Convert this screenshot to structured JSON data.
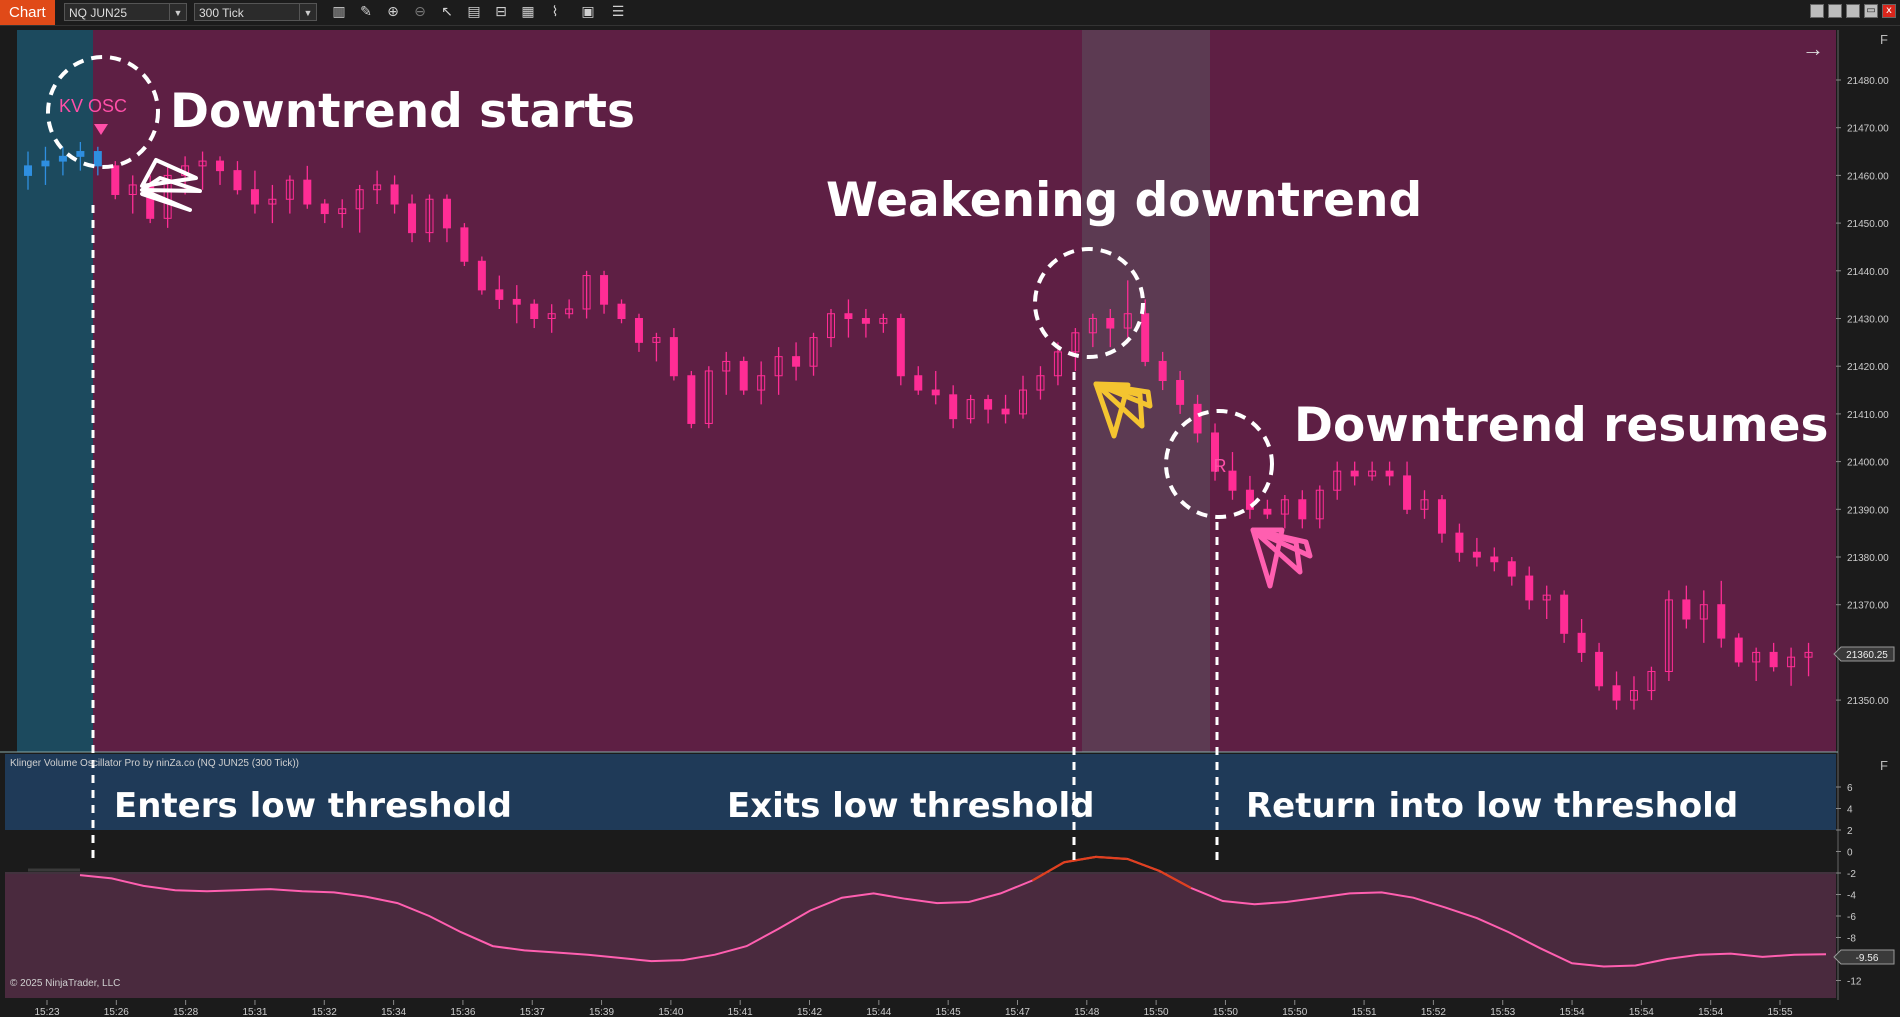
{
  "toolbar": {
    "chart_tab": "Chart",
    "instrument": "NQ JUN25",
    "interval": "300 Tick",
    "icons": [
      "bar-type-icon",
      "draw-pencil-icon",
      "zoom-in-icon",
      "zoom-out-icon",
      "pointer-icon",
      "data-box-icon",
      "properties-icon",
      "indicators-icon",
      "strategies-icon",
      "templates-icon",
      "list-icon"
    ],
    "window_buttons": [
      "minimize",
      "maximize",
      "restore",
      "close"
    ],
    "close_glyph": "x"
  },
  "price_panel": {
    "price_labels": [
      "21480.00",
      "21470.00",
      "21460.00",
      "21450.00",
      "21440.00",
      "21430.00",
      "21420.00",
      "21410.00",
      "21400.00",
      "21390.00",
      "21380.00",
      "21370.00",
      "21360.00",
      "21350.00"
    ],
    "current_price": "21360.25",
    "panel_button": "F",
    "scroll_arrow": "→",
    "marker_kv": "KV OSC",
    "marker_r": "R"
  },
  "indicator_panel": {
    "title": "Klinger Volume Oscillator Pro by ninZa.co (NQ JUN25 (300 Tick))",
    "scale_labels": [
      "6",
      "4",
      "2",
      "0",
      "-2",
      "-4",
      "-6",
      "-8",
      "-10",
      "-12"
    ],
    "current_value": "-9.56",
    "panel_button": "F",
    "copyright": "© 2025 NinjaTrader, LLC"
  },
  "time_labels": [
    "15:23",
    "15:26",
    "15:28",
    "15:31",
    "15:32",
    "15:34",
    "15:36",
    "15:37",
    "15:39",
    "15:40",
    "15:41",
    "15:42",
    "15:44",
    "15:45",
    "15:47",
    "15:48",
    "15:50",
    "15:50",
    "15:50",
    "15:51",
    "15:52",
    "15:53",
    "15:54",
    "15:54",
    "15:54",
    "15:55"
  ],
  "annotations": {
    "downtrend_starts": "Downtrend starts",
    "weakening": "Weakening downtrend",
    "resumes": "Downtrend resumes",
    "enters": "Enters low threshold",
    "exits": "Exits low threshold",
    "returns": "Return into low threshold"
  },
  "colors": {
    "background": "#1b1b1b",
    "bear_zone": "#5e1f44",
    "bull_zone": "#1c4a5e",
    "neutral_zone": "#5c3a52",
    "candle_pink": "#ff2d95",
    "candle_blue": "#2f8fe0",
    "threshold_band": "#1f3a58",
    "oscillator_line": "#ff5fb0",
    "oscillator_high": "#e0401e",
    "warning_icon": "#f4c430"
  },
  "chart_data": [
    {
      "type": "candlestick",
      "title": "NQ JUN25 300 Tick",
      "ylim": [
        21345,
        21490
      ],
      "candles": [
        [
          21460,
          21465,
          21457,
          21462
        ],
        [
          21462,
          21466,
          21458,
          21463
        ],
        [
          21463,
          21466,
          21460,
          21464
        ],
        [
          21464,
          21467,
          21461,
          21465
        ],
        [
          21465,
          21466,
          21460,
          21462
        ],
        [
          21462,
          21463,
          21455,
          21456
        ],
        [
          21456,
          21460,
          21452,
          21458
        ],
        [
          21458,
          21460,
          21450,
          21451
        ],
        [
          21451,
          21462,
          21449,
          21460
        ],
        [
          21460,
          21464,
          21456,
          21462
        ],
        [
          21462,
          21465,
          21457,
          21463
        ],
        [
          21463,
          21464,
          21458,
          21461
        ],
        [
          21461,
          21463,
          21456,
          21457
        ],
        [
          21457,
          21461,
          21452,
          21454
        ],
        [
          21454,
          21458,
          21450,
          21455
        ],
        [
          21455,
          21460,
          21452,
          21459
        ],
        [
          21459,
          21462,
          21453,
          21454
        ],
        [
          21454,
          21455,
          21450,
          21452
        ],
        [
          21452,
          21455,
          21449,
          21453
        ],
        [
          21453,
          21458,
          21448,
          21457
        ],
        [
          21457,
          21461,
          21454,
          21458
        ],
        [
          21458,
          21460,
          21452,
          21454
        ],
        [
          21454,
          21456,
          21446,
          21448
        ],
        [
          21448,
          21456,
          21446,
          21455
        ],
        [
          21455,
          21456,
          21446,
          21449
        ],
        [
          21449,
          21450,
          21441,
          21442
        ],
        [
          21442,
          21443,
          21435,
          21436
        ],
        [
          21436,
          21439,
          21432,
          21434
        ],
        [
          21434,
          21437,
          21429,
          21433
        ],
        [
          21433,
          21434,
          21428,
          21430
        ],
        [
          21430,
          21433,
          21427,
          21431
        ],
        [
          21431,
          21434,
          21430,
          21432
        ],
        [
          21432,
          21440,
          21430,
          21439
        ],
        [
          21439,
          21440,
          21431,
          21433
        ],
        [
          21433,
          21434,
          21429,
          21430
        ],
        [
          21430,
          21431,
          21423,
          21425
        ],
        [
          21425,
          21427,
          21421,
          21426
        ],
        [
          21426,
          21428,
          21417,
          21418
        ],
        [
          21418,
          21419,
          21407,
          21408
        ],
        [
          21408,
          21420,
          21407,
          21419
        ],
        [
          21419,
          21423,
          21414,
          21421
        ],
        [
          21421,
          21422,
          21414,
          21415
        ],
        [
          21415,
          21421,
          21412,
          21418
        ],
        [
          21418,
          21424,
          21414,
          21422
        ],
        [
          21422,
          21425,
          21417,
          21420
        ],
        [
          21420,
          21427,
          21418,
          21426
        ],
        [
          21426,
          21432,
          21424,
          21431
        ],
        [
          21431,
          21434,
          21426,
          21430
        ],
        [
          21430,
          21432,
          21426,
          21429
        ],
        [
          21429,
          21431,
          21427,
          21430
        ],
        [
          21430,
          21431,
          21416,
          21418
        ],
        [
          21418,
          21420,
          21414,
          21415
        ],
        [
          21415,
          21419,
          21412,
          21414
        ],
        [
          21414,
          21416,
          21407,
          21409
        ],
        [
          21409,
          21414,
          21408,
          21413
        ],
        [
          21413,
          21414,
          21408,
          21411
        ],
        [
          21411,
          21414,
          21408,
          21410
        ],
        [
          21410,
          21418,
          21409,
          21415
        ],
        [
          21415,
          21420,
          21413,
          21418
        ],
        [
          21418,
          21425,
          21416,
          21423
        ],
        [
          21423,
          21428,
          21419,
          21427
        ],
        [
          21427,
          21431,
          21424,
          21430
        ],
        [
          21430,
          21432,
          21424,
          21428
        ],
        [
          21428,
          21438,
          21426,
          21431
        ],
        [
          21431,
          21434,
          21420,
          21421
        ],
        [
          21421,
          21423,
          21415,
          21417
        ],
        [
          21417,
          21419,
          21410,
          21412
        ],
        [
          21412,
          21414,
          21404,
          21406
        ],
        [
          21406,
          21408,
          21396,
          21398
        ],
        [
          21398,
          21402,
          21392,
          21394
        ],
        [
          21394,
          21397,
          21388,
          21390
        ],
        [
          21390,
          21392,
          21388,
          21389
        ],
        [
          21389,
          21393,
          21386,
          21392
        ],
        [
          21392,
          21394,
          21386,
          21388
        ],
        [
          21388,
          21395,
          21386,
          21394
        ],
        [
          21394,
          21400,
          21392,
          21398
        ],
        [
          21398,
          21400,
          21395,
          21397
        ],
        [
          21397,
          21400,
          21396,
          21398
        ],
        [
          21398,
          21400,
          21395,
          21397
        ],
        [
          21397,
          21400,
          21389,
          21390
        ],
        [
          21390,
          21394,
          21388,
          21392
        ],
        [
          21392,
          21393,
          21383,
          21385
        ],
        [
          21385,
          21387,
          21379,
          21381
        ],
        [
          21381,
          21384,
          21378,
          21380
        ],
        [
          21380,
          21382,
          21377,
          21379
        ],
        [
          21379,
          21380,
          21374,
          21376
        ],
        [
          21376,
          21378,
          21369,
          21371
        ],
        [
          21371,
          21374,
          21367,
          21372
        ],
        [
          21372,
          21373,
          21362,
          21364
        ],
        [
          21364,
          21367,
          21358,
          21360
        ],
        [
          21360,
          21362,
          21352,
          21353
        ],
        [
          21353,
          21356,
          21348,
          21350
        ],
        [
          21350,
          21355,
          21348,
          21352
        ],
        [
          21352,
          21357,
          21350,
          21356
        ],
        [
          21356,
          21373,
          21354,
          21371
        ],
        [
          21371,
          21374,
          21365,
          21367
        ],
        [
          21367,
          21373,
          21362,
          21370
        ],
        [
          21370,
          21375,
          21361,
          21363
        ],
        [
          21363,
          21364,
          21357,
          21358
        ],
        [
          21358,
          21361,
          21354,
          21360
        ],
        [
          21360,
          21362,
          21356,
          21357
        ],
        [
          21357,
          21361,
          21353,
          21359
        ],
        [
          21359,
          21362,
          21355,
          21360
        ]
      ]
    },
    {
      "type": "line",
      "title": "Klinger Volume Oscillator Pro",
      "ylim": [
        -14,
        7
      ],
      "values": [
        -2.2,
        -2.5,
        -3.2,
        -3.6,
        -3.7,
        -3.6,
        -3.5,
        -3.7,
        -3.8,
        -4.2,
        -4.8,
        -6.0,
        -7.5,
        -8.8,
        -9.2,
        -9.4,
        -9.6,
        -9.9,
        -10.2,
        -10.1,
        -9.6,
        -8.8,
        -7.2,
        -5.5,
        -4.3,
        -3.9,
        -4.4,
        -4.8,
        -4.7,
        -3.9,
        -2.7,
        -1.0,
        -0.5,
        -0.7,
        -1.8,
        -3.4,
        -4.6,
        -4.9,
        -4.7,
        -4.3,
        -3.9,
        -3.8,
        -4.3,
        -5.2,
        -6.2,
        -7.5,
        -9.0,
        -10.4,
        -10.7,
        -10.6,
        -10.0,
        -9.6,
        -9.5,
        -9.8,
        -9.6,
        -9.56
      ],
      "high_threshold_band": [
        2,
        7
      ]
    }
  ]
}
